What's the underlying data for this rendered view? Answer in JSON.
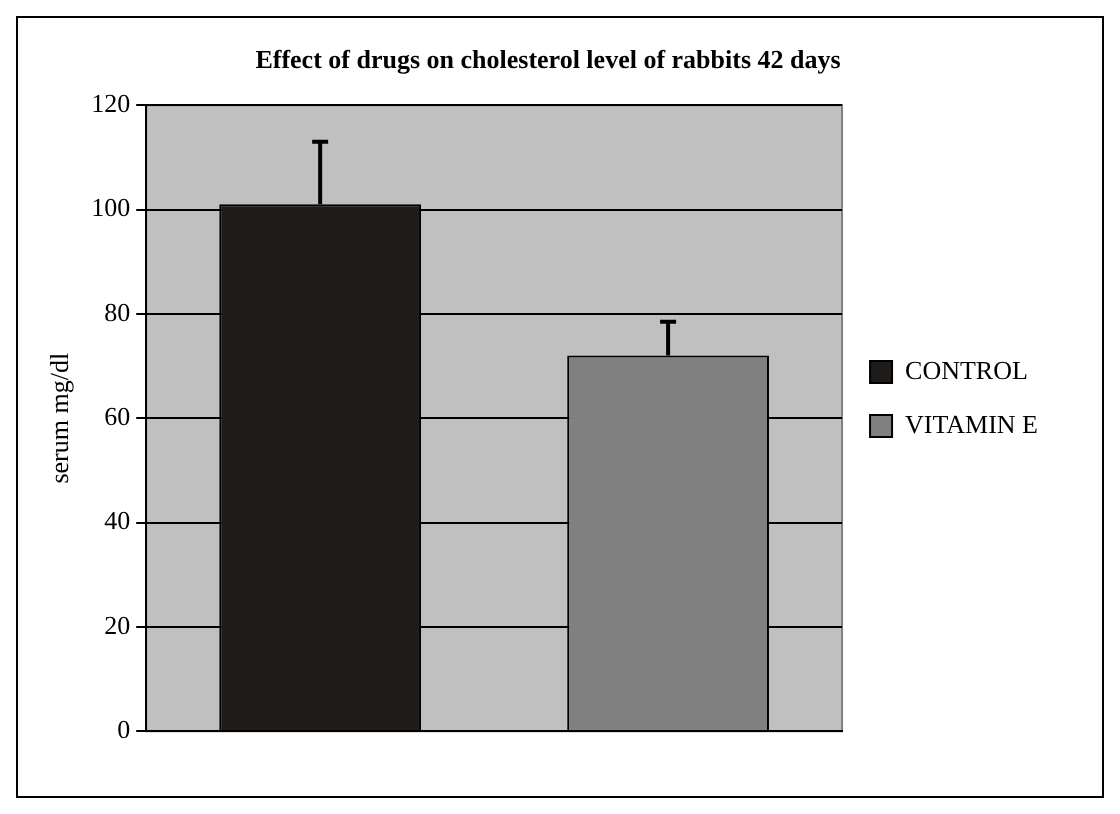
{
  "chart_data": {
    "type": "bar",
    "title": "Effect of drugs on cholesterol level of rabbits 42 days",
    "ylabel": "serum mg/dl",
    "categories": [
      null
    ],
    "series": [
      {
        "name": "CONTROL",
        "color": "#201c1a",
        "values": [
          101
        ],
        "errors": [
          12
        ]
      },
      {
        "name": "VITAMIN E",
        "color": "#808080",
        "values": [
          72
        ],
        "errors": [
          6.5
        ]
      }
    ],
    "ylim": [
      0,
      120
    ],
    "yticks": [
      0,
      20,
      40,
      60,
      80,
      100,
      120
    ],
    "grid": "y",
    "legend": "right"
  }
}
